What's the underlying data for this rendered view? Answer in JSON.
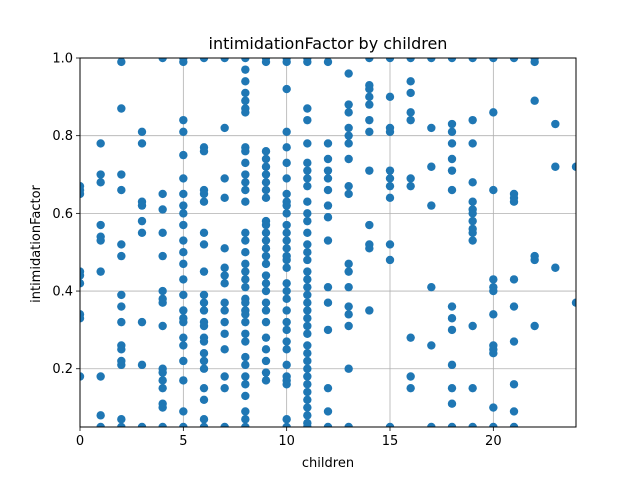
{
  "chart_data": {
    "type": "scatter",
    "title": "intimidationFactor by children",
    "xlabel": "children",
    "ylabel": "intimidationFactor",
    "xlim": [
      0,
      24
    ],
    "ylim": [
      0.05,
      1.0
    ],
    "x_ticks": [
      0,
      5,
      10,
      15,
      20
    ],
    "y_ticks": [
      0.2,
      0.4,
      0.6,
      0.8,
      1.0
    ],
    "x_tick_labels": [
      "0",
      "5",
      "10",
      "15",
      "20"
    ],
    "y_tick_labels": [
      "0.2",
      "0.4",
      "0.6",
      "0.8",
      "1.0"
    ],
    "grid": true,
    "marker_color": "#1f77b4",
    "points": [
      [
        0,
        0.67
      ],
      [
        0,
        0.66
      ],
      [
        0,
        0.65
      ],
      [
        0,
        0.45
      ],
      [
        0,
        0.44
      ],
      [
        0,
        0.42
      ],
      [
        0,
        0.34
      ],
      [
        0,
        0.33
      ],
      [
        0,
        0.18
      ],
      [
        1,
        0.78
      ],
      [
        1,
        0.7
      ],
      [
        1,
        0.68
      ],
      [
        1,
        0.57
      ],
      [
        1,
        0.54
      ],
      [
        1,
        0.53
      ],
      [
        1,
        0.45
      ],
      [
        1,
        0.18
      ],
      [
        1,
        0.08
      ],
      [
        1,
        0.05
      ],
      [
        2,
        0.99
      ],
      [
        2,
        0.87
      ],
      [
        2,
        0.7
      ],
      [
        2,
        0.66
      ],
      [
        2,
        0.52
      ],
      [
        2,
        0.49
      ],
      [
        2,
        0.39
      ],
      [
        2,
        0.36
      ],
      [
        2,
        0.32
      ],
      [
        2,
        0.26
      ],
      [
        2,
        0.25
      ],
      [
        2,
        0.22
      ],
      [
        2,
        0.21
      ],
      [
        2,
        0.07
      ],
      [
        2,
        0.05
      ],
      [
        3,
        0.81
      ],
      [
        3,
        0.78
      ],
      [
        3,
        0.63
      ],
      [
        3,
        0.62
      ],
      [
        3,
        0.58
      ],
      [
        3,
        0.55
      ],
      [
        3,
        0.32
      ],
      [
        3,
        0.21
      ],
      [
        3,
        0.05
      ],
      [
        4,
        1.0
      ],
      [
        4,
        0.65
      ],
      [
        4,
        0.61
      ],
      [
        4,
        0.55
      ],
      [
        4,
        0.49
      ],
      [
        4,
        0.4
      ],
      [
        4,
        0.38
      ],
      [
        4,
        0.37
      ],
      [
        4,
        0.31
      ],
      [
        4,
        0.2
      ],
      [
        4,
        0.19
      ],
      [
        4,
        0.17
      ],
      [
        4,
        0.15
      ],
      [
        4,
        0.11
      ],
      [
        4,
        0.1
      ],
      [
        4,
        0.05
      ],
      [
        5,
        1.0
      ],
      [
        5,
        0.99
      ],
      [
        5,
        0.84
      ],
      [
        5,
        0.81
      ],
      [
        5,
        0.75
      ],
      [
        5,
        0.69
      ],
      [
        5,
        0.65
      ],
      [
        5,
        0.62
      ],
      [
        5,
        0.6
      ],
      [
        5,
        0.57
      ],
      [
        5,
        0.53
      ],
      [
        5,
        0.5
      ],
      [
        5,
        0.47
      ],
      [
        5,
        0.43
      ],
      [
        5,
        0.39
      ],
      [
        5,
        0.35
      ],
      [
        5,
        0.33
      ],
      [
        5,
        0.32
      ],
      [
        5,
        0.28
      ],
      [
        5,
        0.26
      ],
      [
        5,
        0.22
      ],
      [
        5,
        0.17
      ],
      [
        5,
        0.09
      ],
      [
        5,
        0.05
      ],
      [
        6,
        1.0
      ],
      [
        6,
        0.77
      ],
      [
        6,
        0.76
      ],
      [
        6,
        0.66
      ],
      [
        6,
        0.65
      ],
      [
        6,
        0.63
      ],
      [
        6,
        0.55
      ],
      [
        6,
        0.52
      ],
      [
        6,
        0.45
      ],
      [
        6,
        0.39
      ],
      [
        6,
        0.37
      ],
      [
        6,
        0.35
      ],
      [
        6,
        0.32
      ],
      [
        6,
        0.31
      ],
      [
        6,
        0.28
      ],
      [
        6,
        0.27
      ],
      [
        6,
        0.24
      ],
      [
        6,
        0.22
      ],
      [
        6,
        0.2
      ],
      [
        6,
        0.15
      ],
      [
        6,
        0.12
      ],
      [
        6,
        0.07
      ],
      [
        6,
        0.05
      ],
      [
        7,
        1.0
      ],
      [
        7,
        0.82
      ],
      [
        7,
        0.69
      ],
      [
        7,
        0.64
      ],
      [
        7,
        0.51
      ],
      [
        7,
        0.46
      ],
      [
        7,
        0.44
      ],
      [
        7,
        0.42
      ],
      [
        7,
        0.37
      ],
      [
        7,
        0.35
      ],
      [
        7,
        0.32
      ],
      [
        7,
        0.29
      ],
      [
        7,
        0.25
      ],
      [
        7,
        0.18
      ],
      [
        7,
        0.15
      ],
      [
        7,
        0.05
      ],
      [
        8,
        1.0
      ],
      [
        8,
        0.97
      ],
      [
        8,
        0.94
      ],
      [
        8,
        0.91
      ],
      [
        8,
        0.89
      ],
      [
        8,
        0.87
      ],
      [
        8,
        0.86
      ],
      [
        8,
        0.77
      ],
      [
        8,
        0.76
      ],
      [
        8,
        0.73
      ],
      [
        8,
        0.7
      ],
      [
        8,
        0.68
      ],
      [
        8,
        0.66
      ],
      [
        8,
        0.63
      ],
      [
        8,
        0.55
      ],
      [
        8,
        0.53
      ],
      [
        8,
        0.5
      ],
      [
        8,
        0.47
      ],
      [
        8,
        0.45
      ],
      [
        8,
        0.43
      ],
      [
        8,
        0.41
      ],
      [
        8,
        0.38
      ],
      [
        8,
        0.37
      ],
      [
        8,
        0.35
      ],
      [
        8,
        0.34
      ],
      [
        8,
        0.32
      ],
      [
        8,
        0.29
      ],
      [
        8,
        0.27
      ],
      [
        8,
        0.23
      ],
      [
        8,
        0.21
      ],
      [
        8,
        0.18
      ],
      [
        8,
        0.16
      ],
      [
        8,
        0.13
      ],
      [
        8,
        0.09
      ],
      [
        8,
        0.07
      ],
      [
        8,
        0.05
      ],
      [
        9,
        1.0
      ],
      [
        9,
        0.99
      ],
      [
        9,
        0.76
      ],
      [
        9,
        0.74
      ],
      [
        9,
        0.72
      ],
      [
        9,
        0.7
      ],
      [
        9,
        0.68
      ],
      [
        9,
        0.66
      ],
      [
        9,
        0.64
      ],
      [
        9,
        0.58
      ],
      [
        9,
        0.57
      ],
      [
        9,
        0.55
      ],
      [
        9,
        0.53
      ],
      [
        9,
        0.51
      ],
      [
        9,
        0.49
      ],
      [
        9,
        0.47
      ],
      [
        9,
        0.44
      ],
      [
        9,
        0.42
      ],
      [
        9,
        0.4
      ],
      [
        9,
        0.37
      ],
      [
        9,
        0.35
      ],
      [
        9,
        0.32
      ],
      [
        9,
        0.28
      ],
      [
        9,
        0.25
      ],
      [
        9,
        0.22
      ],
      [
        9,
        0.19
      ],
      [
        9,
        0.17
      ],
      [
        10,
        1.0
      ],
      [
        10,
        0.99
      ],
      [
        10,
        0.92
      ],
      [
        10,
        0.81
      ],
      [
        10,
        0.77
      ],
      [
        10,
        0.73
      ],
      [
        10,
        0.69
      ],
      [
        10,
        0.65
      ],
      [
        10,
        0.63
      ],
      [
        10,
        0.62
      ],
      [
        10,
        0.6
      ],
      [
        10,
        0.57
      ],
      [
        10,
        0.55
      ],
      [
        10,
        0.53
      ],
      [
        10,
        0.51
      ],
      [
        10,
        0.49
      ],
      [
        10,
        0.48
      ],
      [
        10,
        0.46
      ],
      [
        10,
        0.42
      ],
      [
        10,
        0.4
      ],
      [
        10,
        0.38
      ],
      [
        10,
        0.35
      ],
      [
        10,
        0.32
      ],
      [
        10,
        0.3
      ],
      [
        10,
        0.27
      ],
      [
        10,
        0.25
      ],
      [
        10,
        0.21
      ],
      [
        10,
        0.18
      ],
      [
        10,
        0.17
      ],
      [
        10,
        0.16
      ],
      [
        10,
        0.07
      ],
      [
        10,
        0.05
      ],
      [
        11,
        1.0
      ],
      [
        11,
        0.99
      ],
      [
        11,
        0.87
      ],
      [
        11,
        0.84
      ],
      [
        11,
        0.78
      ],
      [
        11,
        0.73
      ],
      [
        11,
        0.71
      ],
      [
        11,
        0.69
      ],
      [
        11,
        0.67
      ],
      [
        11,
        0.63
      ],
      [
        11,
        0.6
      ],
      [
        11,
        0.58
      ],
      [
        11,
        0.55
      ],
      [
        11,
        0.52
      ],
      [
        11,
        0.5
      ],
      [
        11,
        0.48
      ],
      [
        11,
        0.45
      ],
      [
        11,
        0.43
      ],
      [
        11,
        0.41
      ],
      [
        11,
        0.39
      ],
      [
        11,
        0.37
      ],
      [
        11,
        0.35
      ],
      [
        11,
        0.33
      ],
      [
        11,
        0.31
      ],
      [
        11,
        0.29
      ],
      [
        11,
        0.26
      ],
      [
        11,
        0.24
      ],
      [
        11,
        0.22
      ],
      [
        11,
        0.2
      ],
      [
        11,
        0.18
      ],
      [
        11,
        0.16
      ],
      [
        11,
        0.14
      ],
      [
        11,
        0.12
      ],
      [
        11,
        0.1
      ],
      [
        11,
        0.08
      ],
      [
        11,
        0.06
      ],
      [
        11,
        0.05
      ],
      [
        12,
        0.99
      ],
      [
        12,
        0.78
      ],
      [
        12,
        0.74
      ],
      [
        12,
        0.71
      ],
      [
        12,
        0.69
      ],
      [
        12,
        0.66
      ],
      [
        12,
        0.62
      ],
      [
        12,
        0.59
      ],
      [
        12,
        0.53
      ],
      [
        12,
        0.41
      ],
      [
        12,
        0.37
      ],
      [
        12,
        0.3
      ],
      [
        12,
        0.15
      ],
      [
        12,
        0.09
      ],
      [
        12,
        0.05
      ],
      [
        13,
        0.96
      ],
      [
        13,
        0.88
      ],
      [
        13,
        0.86
      ],
      [
        13,
        0.82
      ],
      [
        13,
        0.8
      ],
      [
        13,
        0.78
      ],
      [
        13,
        0.74
      ],
      [
        13,
        0.67
      ],
      [
        13,
        0.65
      ],
      [
        13,
        0.47
      ],
      [
        13,
        0.45
      ],
      [
        13,
        0.41
      ],
      [
        13,
        0.36
      ],
      [
        13,
        0.34
      ],
      [
        13,
        0.31
      ],
      [
        13,
        0.2
      ],
      [
        13,
        0.05
      ],
      [
        14,
        1.0
      ],
      [
        14,
        0.93
      ],
      [
        14,
        0.92
      ],
      [
        14,
        0.9
      ],
      [
        14,
        0.88
      ],
      [
        14,
        0.84
      ],
      [
        14,
        0.81
      ],
      [
        14,
        0.71
      ],
      [
        14,
        0.57
      ],
      [
        14,
        0.52
      ],
      [
        14,
        0.51
      ],
      [
        14,
        0.35
      ],
      [
        15,
        1.0
      ],
      [
        15,
        0.9
      ],
      [
        15,
        0.82
      ],
      [
        15,
        0.81
      ],
      [
        15,
        0.71
      ],
      [
        15,
        0.69
      ],
      [
        15,
        0.67
      ],
      [
        15,
        0.64
      ],
      [
        15,
        0.52
      ],
      [
        15,
        0.48
      ],
      [
        15,
        0.05
      ],
      [
        16,
        1.0
      ],
      [
        16,
        0.94
      ],
      [
        16,
        0.91
      ],
      [
        16,
        0.86
      ],
      [
        16,
        0.84
      ],
      [
        16,
        0.69
      ],
      [
        16,
        0.67
      ],
      [
        16,
        0.28
      ],
      [
        16,
        0.18
      ],
      [
        16,
        0.15
      ],
      [
        17,
        1.0
      ],
      [
        17,
        0.82
      ],
      [
        17,
        0.72
      ],
      [
        17,
        0.62
      ],
      [
        17,
        0.41
      ],
      [
        17,
        0.26
      ],
      [
        17,
        0.05
      ],
      [
        18,
        1.0
      ],
      [
        18,
        0.83
      ],
      [
        18,
        0.81
      ],
      [
        18,
        0.78
      ],
      [
        18,
        0.74
      ],
      [
        18,
        0.71
      ],
      [
        18,
        0.66
      ],
      [
        18,
        0.36
      ],
      [
        18,
        0.33
      ],
      [
        18,
        0.3
      ],
      [
        18,
        0.21
      ],
      [
        18,
        0.15
      ],
      [
        18,
        0.11
      ],
      [
        18,
        0.05
      ],
      [
        19,
        1.0
      ],
      [
        19,
        0.84
      ],
      [
        19,
        0.78
      ],
      [
        19,
        0.68
      ],
      [
        19,
        0.63
      ],
      [
        19,
        0.61
      ],
      [
        19,
        0.6
      ],
      [
        19,
        0.58
      ],
      [
        19,
        0.56
      ],
      [
        19,
        0.55
      ],
      [
        19,
        0.53
      ],
      [
        19,
        0.31
      ],
      [
        19,
        0.15
      ],
      [
        19,
        0.05
      ],
      [
        20,
        1.0
      ],
      [
        20,
        0.86
      ],
      [
        20,
        0.66
      ],
      [
        20,
        0.43
      ],
      [
        20,
        0.41
      ],
      [
        20,
        0.4
      ],
      [
        20,
        0.34
      ],
      [
        20,
        0.26
      ],
      [
        20,
        0.25
      ],
      [
        20,
        0.24
      ],
      [
        20,
        0.1
      ],
      [
        20,
        0.05
      ],
      [
        21,
        1.0
      ],
      [
        21,
        0.65
      ],
      [
        21,
        0.64
      ],
      [
        21,
        0.63
      ],
      [
        21,
        0.43
      ],
      [
        21,
        0.36
      ],
      [
        21,
        0.27
      ],
      [
        21,
        0.16
      ],
      [
        21,
        0.09
      ],
      [
        21,
        0.05
      ],
      [
        22,
        1.0
      ],
      [
        22,
        0.99
      ],
      [
        22,
        0.89
      ],
      [
        22,
        0.49
      ],
      [
        22,
        0.48
      ],
      [
        22,
        0.31
      ],
      [
        23,
        0.83
      ],
      [
        23,
        0.72
      ],
      [
        23,
        0.46
      ],
      [
        24,
        0.72
      ],
      [
        24,
        0.37
      ]
    ]
  }
}
